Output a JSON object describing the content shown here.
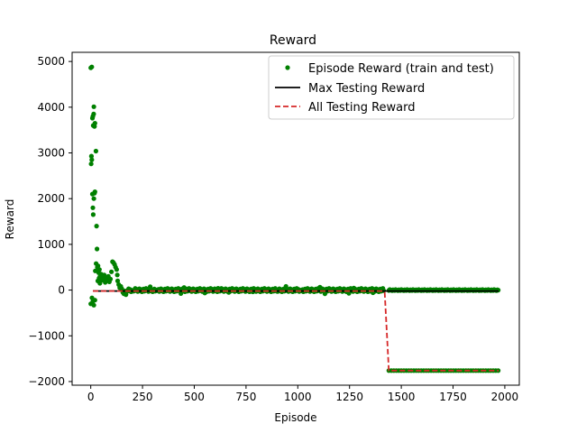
{
  "chart_data": {
    "type": "scatter",
    "title": "Reward",
    "xlabel": "Episode",
    "ylabel": "Reward",
    "xlim": [
      -90,
      2070
    ],
    "ylim": [
      -2080,
      5200
    ],
    "xticks": [
      0,
      250,
      500,
      750,
      1000,
      1250,
      1500,
      1750,
      2000
    ],
    "yticks": [
      -2000,
      -1000,
      0,
      1000,
      2000,
      3000,
      4000,
      5000
    ],
    "grid": false,
    "legend_position": "top-right",
    "series": [
      {
        "name": "Episode Reward (train and test)",
        "kind": "points",
        "color": "#008000",
        "points": [
          [
            0,
            4860
          ],
          [
            5,
            4880
          ],
          [
            3,
            2930
          ],
          [
            2,
            2760
          ],
          [
            5,
            2850
          ],
          [
            8,
            3760
          ],
          [
            10,
            3800
          ],
          [
            12,
            3600
          ],
          [
            15,
            4010
          ],
          [
            18,
            3580
          ],
          [
            20,
            3650
          ],
          [
            14,
            3850
          ],
          [
            8,
            2100
          ],
          [
            10,
            1800
          ],
          [
            12,
            1650
          ],
          [
            15,
            2000
          ],
          [
            18,
            2120
          ],
          [
            20,
            2150
          ],
          [
            25,
            3040
          ],
          [
            28,
            1400
          ],
          [
            30,
            900
          ],
          [
            32,
            500
          ],
          [
            35,
            530
          ],
          [
            38,
            380
          ],
          [
            40,
            260
          ],
          [
            42,
            450
          ],
          [
            45,
            300
          ],
          [
            48,
            200
          ],
          [
            50,
            350
          ],
          [
            55,
            280
          ],
          [
            60,
            220
          ],
          [
            65,
            330
          ],
          [
            70,
            170
          ],
          [
            75,
            260
          ],
          [
            80,
            210
          ],
          [
            85,
            300
          ],
          [
            90,
            180
          ],
          [
            95,
            240
          ],
          [
            100,
            400
          ],
          [
            105,
            620
          ],
          [
            110,
            600
          ],
          [
            115,
            560
          ],
          [
            120,
            500
          ],
          [
            125,
            450
          ],
          [
            128,
            330
          ],
          [
            130,
            200
          ],
          [
            135,
            120
          ],
          [
            140,
            50
          ],
          [
            145,
            80
          ],
          [
            150,
            30
          ],
          [
            155,
            -50
          ],
          [
            160,
            -80
          ],
          [
            165,
            -20
          ],
          [
            170,
            -100
          ],
          [
            0,
            -300
          ],
          [
            10,
            -250
          ],
          [
            15,
            -330
          ],
          [
            20,
            -220
          ],
          [
            6,
            -170
          ],
          [
            22,
            420
          ],
          [
            26,
            580
          ],
          [
            34,
            200
          ],
          [
            44,
            150
          ]
        ]
      },
      {
        "name": "Max Testing Reward",
        "kind": "line",
        "color": "#000000",
        "points": [
          [
            10,
            -20
          ],
          [
            1970,
            -20
          ]
        ]
      },
      {
        "name": "All Testing Reward",
        "kind": "dashed-line",
        "color": "#d62728",
        "points": [
          [
            10,
            -20
          ],
          [
            1410,
            -20
          ],
          [
            1420,
            -50
          ],
          [
            1440,
            -1760
          ],
          [
            1970,
            -1760
          ]
        ]
      }
    ]
  }
}
